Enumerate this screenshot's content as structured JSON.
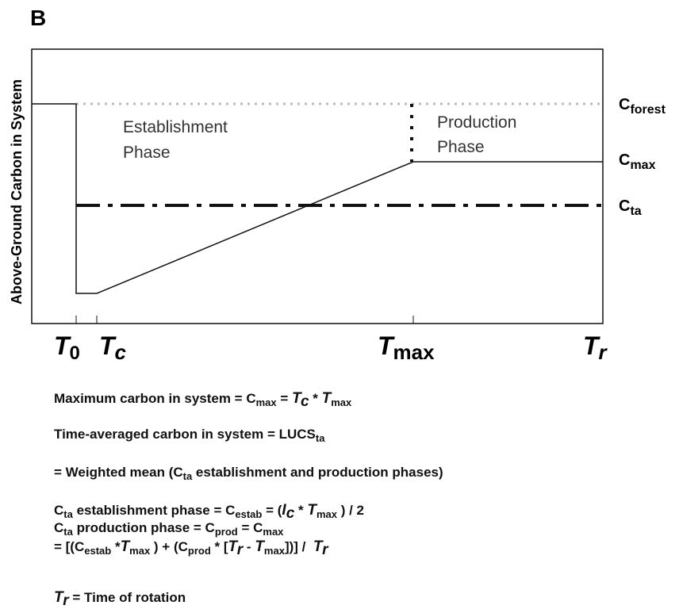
{
  "panel_label": "B",
  "y_axis_label": "Above-Ground Carbon in System",
  "establishment_phase": [
    "Establishment",
    "Phase"
  ],
  "production_phase": [
    "Production",
    "Phase"
  ],
  "levels": {
    "forest": [
      "C",
      "forest"
    ],
    "max": [
      "C",
      "max"
    ],
    "ta": [
      "C",
      "ta"
    ]
  },
  "times": {
    "t0": [
      "T",
      "0"
    ],
    "tc": [
      "T",
      "c"
    ],
    "tmax": [
      "T",
      "max"
    ],
    "tr": [
      "T",
      "r"
    ]
  },
  "formulas": [
    [
      "Maximum carbon in system = ",
      "C",
      "max",
      " = ",
      "T",
      "c",
      " * ",
      "T",
      "max"
    ],
    [
      "Time-averaged carbon in system = LUCS",
      "ta"
    ],
    [
      "= Weighted mean (C",
      "ta",
      " establishment and production phases)"
    ],
    [
      "C",
      "ta",
      " establishment phase = C",
      "estab",
      " = (",
      "I",
      "c",
      " * ",
      "T",
      "max",
      " ) / 2"
    ],
    [
      "C",
      "ta",
      " production phase = C",
      "prod",
      " = C",
      "max"
    ],
    [
      "= [(C",
      "estab",
      " *",
      "T",
      "max",
      " ) + (C",
      "prod",
      " * [",
      "T",
      "r",
      " - ",
      "T",
      "max",
      "])] /  ",
      "T",
      "r"
    ],
    [
      "T",
      "r",
      " = Time of rotation"
    ]
  ]
}
